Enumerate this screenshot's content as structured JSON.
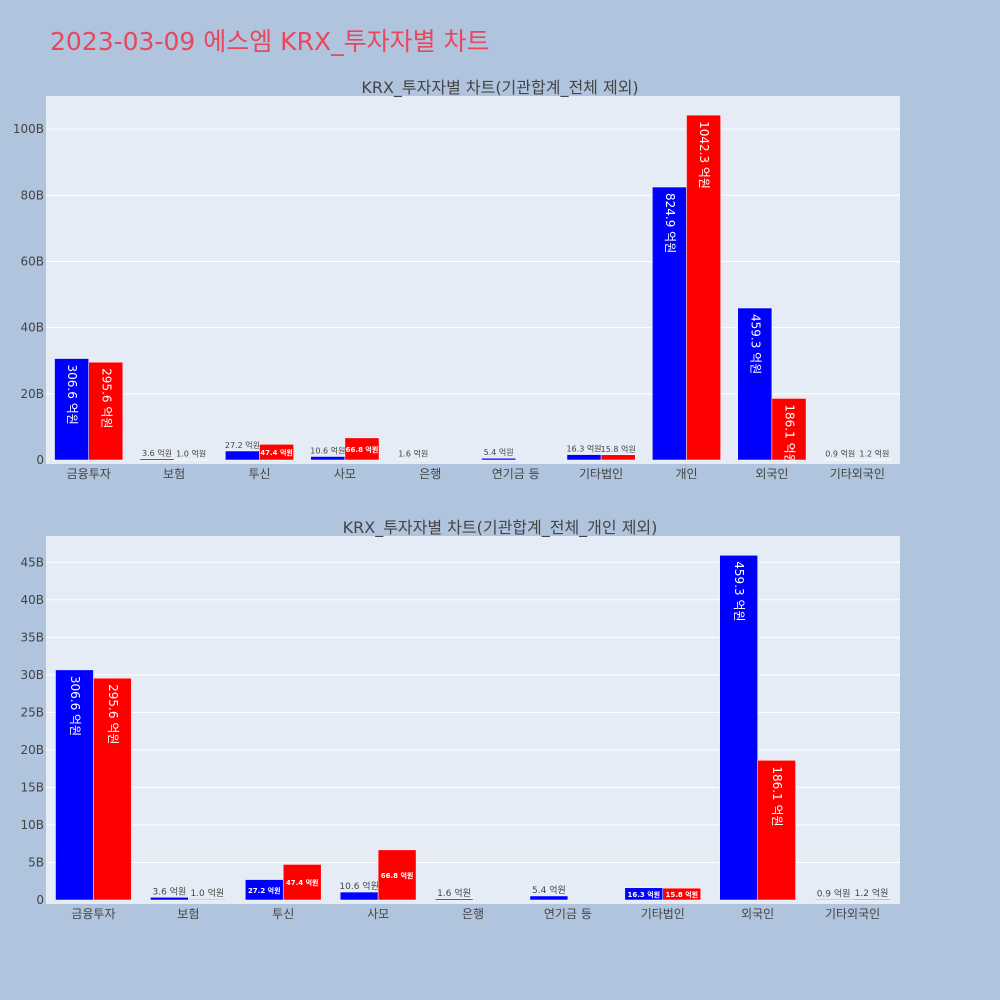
{
  "page_title": "2023-03-09 에스엠 KRX_투자자별 차트",
  "colors": {
    "background": "#b0c4de",
    "plot_bg": "#e5ecf6",
    "title": "#e8475c",
    "buy": "#0000ff",
    "sell": "#ff0000",
    "grid": "#ffffff"
  },
  "chart_data": [
    {
      "type": "bar",
      "title": "KRX_투자자별 차트(기관합계_전체 제외)",
      "categories": [
        "금융투자",
        "보험",
        "투신",
        "사모",
        "은행",
        "연기금 등",
        "기타법인",
        "개인",
        "외국인",
        "기타외국인"
      ],
      "series": [
        {
          "color": "#0000ff",
          "values": [
            30.66,
            0.36,
            2.72,
            1.06,
            0.16,
            0.54,
            1.63,
            82.49,
            45.93,
            0.09
          ],
          "labels": [
            "306.6 억원",
            "3.6 억원",
            "27.2 억원",
            "10.6 억원",
            "1.6 억원",
            "5.4 억원",
            "16.3 억원",
            "824.9 억원",
            "459.3 억원",
            "0.9 억원"
          ]
        },
        {
          "color": "#ff0000",
          "values": [
            29.56,
            0.1,
            4.74,
            6.68,
            0,
            0,
            1.58,
            104.23,
            18.61,
            0.12
          ],
          "labels": [
            "295.6 억원",
            "1.0 억원",
            "47.4 억원",
            "66.8 억원",
            "",
            "",
            "15.8 억원",
            "1042.3 억원",
            "186.1 억원",
            "1.2 억원"
          ]
        }
      ],
      "ylim": [
        0,
        110
      ],
      "yticks": [
        0,
        20,
        40,
        60,
        80,
        100
      ],
      "ytick_labels": [
        "0",
        "20B",
        "40B",
        "60B",
        "80B",
        "100B"
      ],
      "grid": true
    },
    {
      "type": "bar",
      "title": "KRX_투자자별 차트(기관합계_전체_개인 제외)",
      "categories": [
        "금융투자",
        "보험",
        "투신",
        "사모",
        "은행",
        "연기금 등",
        "기타법인",
        "외국인",
        "기타외국인"
      ],
      "series": [
        {
          "color": "#0000ff",
          "values": [
            30.66,
            0.36,
            2.72,
            1.06,
            0.16,
            0.54,
            1.63,
            45.93,
            0.09
          ],
          "labels": [
            "306.6 억원",
            "3.6 억원",
            "27.2 억원",
            "10.6 억원",
            "1.6 억원",
            "5.4 억원",
            "16.3 억원",
            "459.3 억원",
            "0.9 억원"
          ]
        },
        {
          "color": "#ff0000",
          "values": [
            29.56,
            0.1,
            4.74,
            6.68,
            0,
            0,
            1.58,
            18.61,
            0.12
          ],
          "labels": [
            "295.6 억원",
            "1.0 억원",
            "47.4 억원",
            "66.8 억원",
            "",
            "",
            "15.8 억원",
            "186.1 억원",
            "1.2 억원"
          ]
        }
      ],
      "ylim": [
        0,
        48.5
      ],
      "yticks": [
        0,
        5,
        10,
        15,
        20,
        25,
        30,
        35,
        40,
        45
      ],
      "ytick_labels": [
        "0",
        "5B",
        "10B",
        "15B",
        "20B",
        "25B",
        "30B",
        "35B",
        "40B",
        "45B"
      ],
      "grid": true
    }
  ]
}
